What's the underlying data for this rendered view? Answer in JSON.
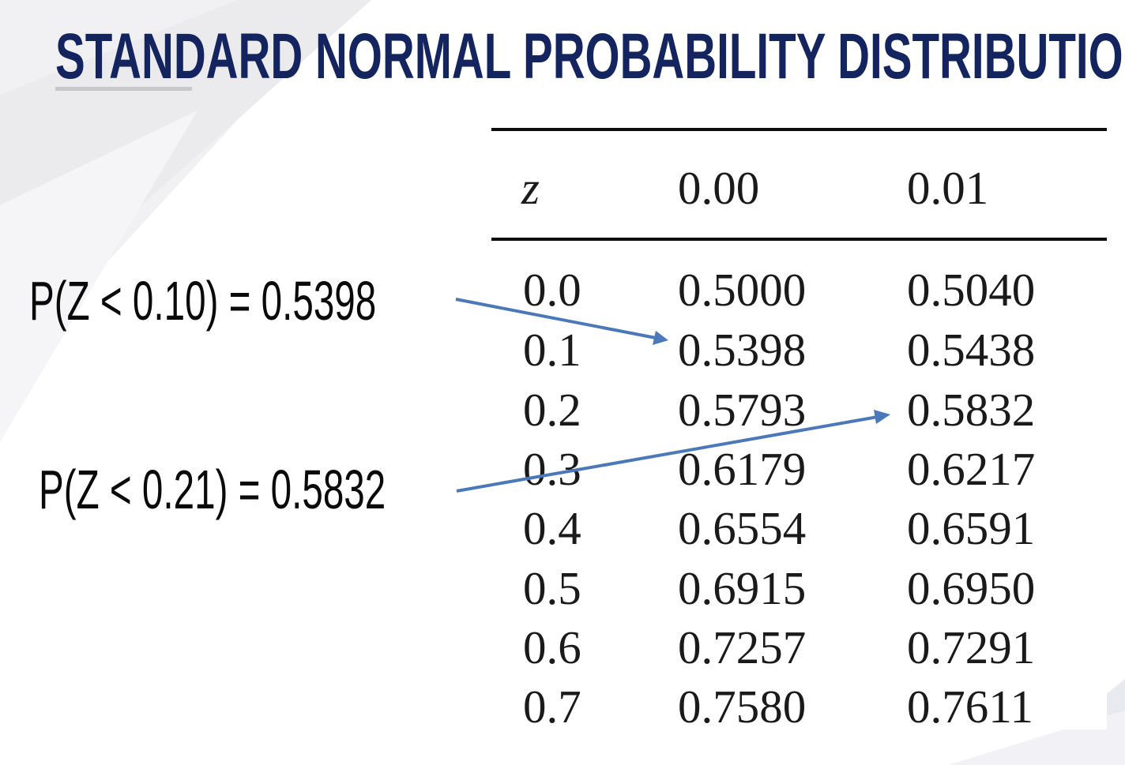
{
  "title": "STANDARD NORMAL PROBABILITY DISTRIBUTION",
  "colors": {
    "title": "#14245f",
    "arrow": "#4a78b8",
    "rule": "#0d0d0d"
  },
  "table": {
    "headers": [
      "z",
      "0.00",
      "0.01"
    ],
    "rows": [
      [
        "0.0",
        "0.5000",
        "0.5040"
      ],
      [
        "0.1",
        "0.5398",
        "0.5438"
      ],
      [
        "0.2",
        "0.5793",
        "0.5832"
      ],
      [
        "0.3",
        "0.6179",
        "0.6217"
      ],
      [
        "0.4",
        "0.6554",
        "0.6591"
      ],
      [
        "0.5",
        "0.6915",
        "0.6950"
      ],
      [
        "0.6",
        "0.7257",
        "0.7291"
      ],
      [
        "0.7",
        "0.7580",
        "0.7611"
      ]
    ]
  },
  "annotations": [
    {
      "text": "P(Z < 0.10) = 0.5398",
      "target": "0.5398"
    },
    {
      "text": "P(Z < 0.21) = 0.5832",
      "target": "0.5832"
    }
  ]
}
